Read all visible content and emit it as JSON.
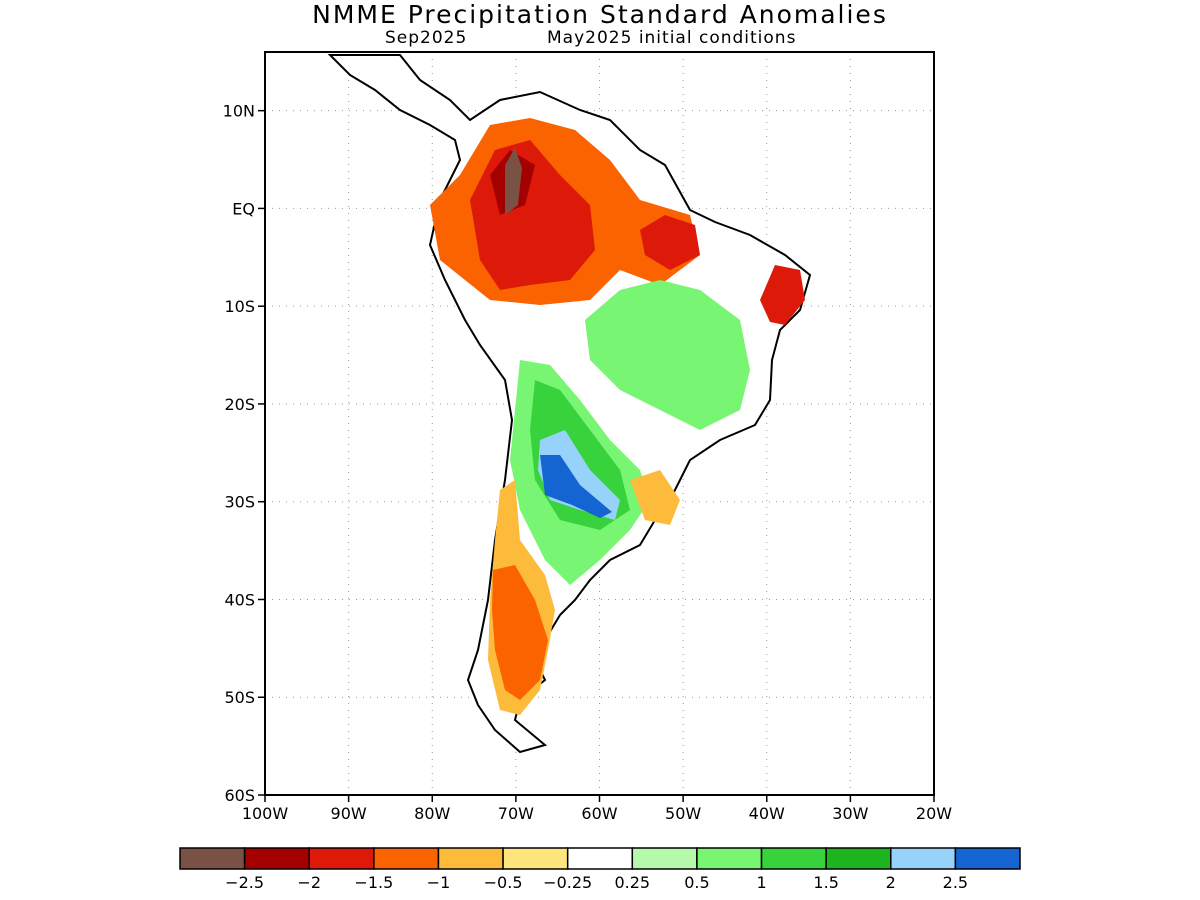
{
  "title": "NMME Precipitation Standard Anomalies",
  "subtitle_left": "Sep2025",
  "subtitle_right": "May2025 initial conditions",
  "map": {
    "lon_range": [
      -100,
      -20
    ],
    "lat_range": [
      -60,
      16
    ],
    "lat_ticks": [
      {
        "value": 10,
        "label": "10N"
      },
      {
        "value": 0,
        "label": "EQ"
      },
      {
        "value": -10,
        "label": "10S"
      },
      {
        "value": -20,
        "label": "20S"
      },
      {
        "value": -30,
        "label": "30S"
      },
      {
        "value": -40,
        "label": "40S"
      },
      {
        "value": -50,
        "label": "50S"
      },
      {
        "value": -60,
        "label": "60S"
      }
    ],
    "lon_ticks": [
      {
        "value": -100,
        "label": "100W"
      },
      {
        "value": -90,
        "label": "90W"
      },
      {
        "value": -80,
        "label": "80W"
      },
      {
        "value": -70,
        "label": "70W"
      },
      {
        "value": -60,
        "label": "60W"
      },
      {
        "value": -50,
        "label": "50W"
      },
      {
        "value": -40,
        "label": "40W"
      },
      {
        "value": -30,
        "label": "30W"
      },
      {
        "value": -20,
        "label": "20W"
      }
    ],
    "grid": true
  },
  "colorbar": {
    "colors": [
      "#7a5245",
      "#a50000",
      "#dd1a0a",
      "#fb6200",
      "#fdbb3c",
      "#fee57c",
      "#ffffff",
      "#b4faaa",
      "#78f573",
      "#37d23c",
      "#1eb41e",
      "#96d2fa",
      "#1464d2"
    ],
    "labels": [
      "-2.5",
      "-2",
      "-1.5",
      "-1",
      "-0.5",
      "-0.25",
      "0.25",
      "0.5",
      "1",
      "1.5",
      "2",
      "2.5"
    ]
  },
  "land": {
    "outline_color": "#000000",
    "no_anomaly_color": "#ffffff"
  }
}
